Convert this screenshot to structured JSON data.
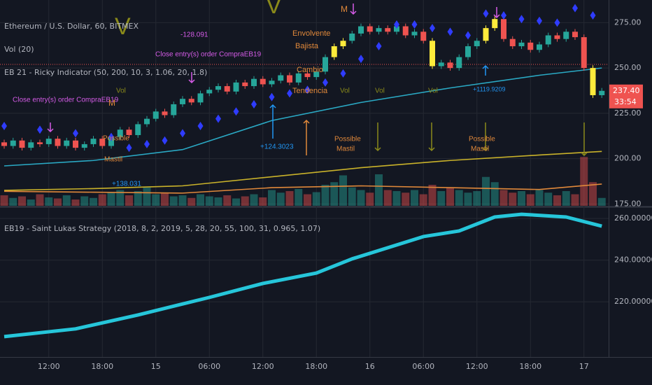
{
  "chart_data": [
    {
      "type": "candlestick",
      "title": "Ethereum / U.S. Dollar, 60, BITMEX",
      "volume_label": "Vol (20)",
      "indicator_label": "EB 21 - Ricky Indicator (50, 200, 10, 3, 1.06, 20, 1.8)",
      "open": [
        209,
        207,
        210,
        206,
        209,
        208,
        211,
        207,
        210,
        206,
        208,
        211,
        207,
        212,
        216,
        213,
        219,
        222,
        226,
        224,
        230,
        233,
        231,
        236,
        238,
        240,
        237,
        242,
        240,
        244,
        241,
        243,
        246,
        242,
        247,
        245,
        248,
        256,
        262,
        265,
        269,
        273,
        270,
        272,
        270,
        273,
        268,
        270,
        265,
        251,
        253,
        250,
        256,
        262,
        265,
        272,
        277,
        266,
        262,
        264,
        260,
        263,
        268,
        266,
        270,
        267,
        250,
        235
      ],
      "high": [
        210.5,
        211.5,
        211.5,
        210.5,
        210.5,
        212.5,
        212.5,
        211.5,
        211.5,
        209.5,
        212.5,
        212.5,
        213.5,
        217.5,
        217.5,
        220.5,
        223.5,
        227.5,
        227.5,
        231.5,
        234.5,
        234.5,
        237.5,
        239.5,
        241.5,
        241.5,
        243.5,
        243.5,
        245.5,
        245.5,
        244.5,
        247.5,
        247.5,
        248.5,
        248.5,
        249.5,
        257.5,
        263.5,
        266.5,
        270.5,
        274.5,
        274.5,
        273.5,
        273.5,
        274.5,
        274.5,
        271.5,
        271.5,
        266.5,
        254.5,
        254.5,
        257.5,
        263.5,
        266.5,
        273.5,
        278.5,
        278.5,
        267.5,
        265.5,
        265.5,
        264.5,
        269.5,
        269.5,
        271.5,
        271.5,
        268.5,
        251.5,
        239
      ],
      "low": [
        205.5,
        205.5,
        204.5,
        204.5,
        206.5,
        206.5,
        205.5,
        205.5,
        204.5,
        204.5,
        206.5,
        205.5,
        205.5,
        210.5,
        211.5,
        211.5,
        217.5,
        220.5,
        222.5,
        222.5,
        228.5,
        229.5,
        229.5,
        234.5,
        236.5,
        235.5,
        235.5,
        238.5,
        238.5,
        239.5,
        239.5,
        241.5,
        240.5,
        240.5,
        243.5,
        243.5,
        246.5,
        254.5,
        260.5,
        263.5,
        267.5,
        268.5,
        268.5,
        268.5,
        268.5,
        266.5,
        266.5,
        263.5,
        249.5,
        249.5,
        248.5,
        248.5,
        254.5,
        260.5,
        263.5,
        270.5,
        264.5,
        260.5,
        260.5,
        258.5,
        258.5,
        261.5,
        264.5,
        264.5,
        265.5,
        248.5,
        233.5,
        233.5
      ],
      "close": [
        207,
        210,
        206,
        209,
        208,
        211,
        207,
        210,
        206,
        208,
        211,
        207,
        212,
        216,
        213,
        219,
        222,
        226,
        224,
        230,
        233,
        231,
        236,
        238,
        240,
        237,
        242,
        240,
        244,
        241,
        243,
        246,
        242,
        247,
        245,
        248,
        256,
        262,
        265,
        269,
        273,
        270,
        272,
        270,
        273,
        268,
        270,
        265,
        251,
        253,
        250,
        256,
        262,
        265,
        272,
        277,
        266,
        262,
        264,
        260,
        263,
        268,
        266,
        270,
        267,
        250,
        235,
        237.4
      ],
      "up_color": "#26a69a",
      "down_color": "#ef5350",
      "highlight_color": "#ffeb3b",
      "highlight": [
        37,
        38,
        48,
        54,
        55,
        66
      ],
      "volume": [
        20,
        15,
        18,
        12,
        22,
        16,
        14,
        20,
        12,
        18,
        15,
        22,
        25,
        30,
        20,
        28,
        35,
        22,
        25,
        18,
        20,
        15,
        22,
        18,
        16,
        20,
        14,
        18,
        22,
        16,
        30,
        25,
        28,
        32,
        22,
        26,
        40,
        45,
        58,
        35,
        30,
        25,
        60,
        30,
        28,
        25,
        30,
        22,
        40,
        28,
        35,
        30,
        25,
        28,
        55,
        45,
        30,
        25,
        28,
        22,
        30,
        25,
        20,
        28,
        22,
        93,
        45,
        15
      ],
      "y2lim": [
        0,
        100
      ],
      "lines": [
        {
          "color": "#2aa9c4",
          "x": [
            0,
            10,
            20,
            30,
            40,
            50,
            60,
            67
          ],
          "values": [
            196,
            199,
            205,
            221,
            231,
            239,
            246,
            250
          ]
        },
        {
          "color": "#c9b22a",
          "x": [
            0,
            10,
            20,
            30,
            40,
            50,
            60,
            67
          ],
          "values": [
            182.5,
            183.5,
            185,
            190,
            195,
            199,
            202,
            204
          ]
        },
        {
          "color": "#e0883a",
          "x": [
            0,
            10,
            20,
            30,
            40,
            50,
            60,
            67
          ],
          "values": [
            182,
            181.5,
            181,
            184,
            185,
            184,
            183,
            186
          ]
        }
      ],
      "sar": {
        "color": "#2f3cff",
        "x": [
          0,
          4,
          8,
          12,
          14,
          16,
          18,
          20,
          22,
          24,
          26,
          28,
          30,
          32,
          34,
          36,
          38,
          40,
          42,
          44,
          46,
          48,
          50,
          52,
          54,
          56,
          58,
          60,
          62,
          64,
          66
        ],
        "values": [
          218,
          216,
          214,
          212,
          206,
          208,
          210,
          214,
          218,
          222,
          226,
          230,
          234,
          236,
          238,
          242,
          247,
          255,
          262,
          274,
          274,
          272,
          270,
          268,
          280,
          279,
          277,
          276,
          275,
          283,
          279
        ]
      },
      "level": 252,
      "level_color": "#ef5350",
      "ylim": [
        174,
        287.5
      ],
      "yticks": [
        {
          "value": 175,
          "label": "175.00"
        },
        {
          "value": 200,
          "label": "200.00"
        },
        {
          "value": 225,
          "label": "225.00"
        },
        {
          "value": 250,
          "label": "250.00"
        },
        {
          "value": 275,
          "label": "275.00"
        }
      ],
      "xticks": [
        {
          "value": 5,
          "label": "12:00"
        },
        {
          "value": 11,
          "label": "18:00"
        },
        17,
        {
          "value": 23,
          "label": "06:00"
        },
        {
          "value": 29,
          "label": "12:00"
        },
        {
          "value": 35,
          "label": "18:00"
        },
        41,
        {
          "value": 47,
          "label": "06:00"
        },
        {
          "value": 53,
          "label": "12:00"
        },
        {
          "value": 59,
          "label": "18:00"
        },
        65
      ],
      "xtick_texts": [
        "12:00",
        "18:00",
        "15",
        "06:00",
        "12:00",
        "18:00",
        "16",
        "06:00",
        "12:00",
        "18:00",
        "17"
      ],
      "last_price": {
        "value": 237.4,
        "label": "237.40"
      },
      "countdown": "33:54",
      "annotations": [
        {
          "text": "Close entry(s) order CompraEB19",
          "color": "#d65ce8"
        },
        {
          "text": "-128.091",
          "color": "#d65ce8"
        },
        {
          "text": "Close entry(s) order CompraEB19",
          "color": "#d65ce8"
        },
        {
          "text": "Vol",
          "color": "#8a8a1a"
        },
        {
          "text": "Vol",
          "color": "#8a8a1a"
        },
        {
          "text": "Vol",
          "color": "#8a8a1a"
        },
        {
          "text": "Vol",
          "color": "#8a8a1a"
        },
        {
          "text": "M",
          "color": "#e0883a"
        },
        {
          "text": "M",
          "color": "#e0883a"
        },
        {
          "text": "Envolvente",
          "color": "#e0883a"
        },
        {
          "text": "Bajista",
          "color": "#e0883a"
        },
        {
          "text": "Cambio",
          "color": "#e0883a"
        },
        {
          "text": "Tendencia",
          "color": "#e0883a"
        },
        {
          "text": "Possible",
          "color": "#e0883a"
        },
        {
          "text": "Mastil",
          "color": "#e0883a"
        },
        {
          "text": "Possible",
          "color": "#e0883a"
        },
        {
          "text": "Mastil",
          "color": "#e0883a"
        },
        {
          "text": "Possible",
          "color": "#e0883a"
        },
        {
          "text": "Mastil",
          "color": "#e0883a"
        },
        {
          "text": "+124.3023",
          "color": "#2196f3"
        },
        {
          "text": "+1119.9209",
          "color": "#2196f3"
        },
        {
          "text": "+138.031",
          "color": "#2196f3"
        },
        {
          "text": "V",
          "color": "#8a8a1a"
        },
        {
          "text": "V",
          "color": "#8a8a1a"
        }
      ]
    },
    {
      "type": "line",
      "title": "EB19 - Saint Lukas Strategy (2018, 8, 2, 2019, 5, 28, 20, 55, 100, 31, 0.965, 1.07)",
      "color": "#26c6da",
      "x": [
        0,
        8,
        15,
        23,
        29,
        35,
        39,
        47,
        51,
        55,
        58,
        63,
        67
      ],
      "values": [
        203.3,
        207,
        213.7,
        222.1,
        228.8,
        233.8,
        240.6,
        251.3,
        254,
        260.7,
        262,
        260.7,
        256.3
      ],
      "ylim": [
        193.5,
        265.4
      ],
      "yticks": [
        {
          "value": 220,
          "label": "220.00000000"
        },
        {
          "value": 240,
          "label": "240.00000000"
        },
        {
          "value": 260,
          "label": "260.00000000"
        }
      ]
    }
  ]
}
